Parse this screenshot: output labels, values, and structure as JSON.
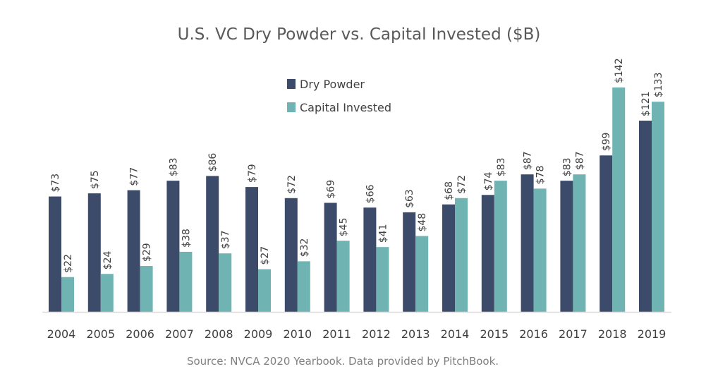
{
  "chart_data": {
    "type": "bar",
    "title": "U.S. VC Dry Powder vs. Capital Invested ($B)",
    "xlabel": "",
    "ylabel": "",
    "ylim": [
      0,
      145
    ],
    "grid": false,
    "legend_position": "top-center",
    "categories": [
      "2004",
      "2005",
      "2006",
      "2007",
      "2008",
      "2009",
      "2010",
      "2011",
      "2012",
      "2013",
      "2014",
      "2015",
      "2016",
      "2017",
      "2018",
      "2019"
    ],
    "series": [
      {
        "name": "Dry Powder",
        "color": "#3d4b6b",
        "values": [
          73,
          75,
          77,
          83,
          86,
          79,
          72,
          69,
          66,
          63,
          68,
          74,
          87,
          83,
          99,
          121
        ]
      },
      {
        "name": "Capital Invested",
        "color": "#6fb3b2",
        "values": [
          22,
          24,
          29,
          38,
          37,
          27,
          32,
          45,
          41,
          48,
          72,
          83,
          78,
          87,
          142,
          133
        ]
      }
    ],
    "value_prefix": "$",
    "source": "Source: NVCA 2020 Yearbook. Data provided by PitchBook."
  }
}
